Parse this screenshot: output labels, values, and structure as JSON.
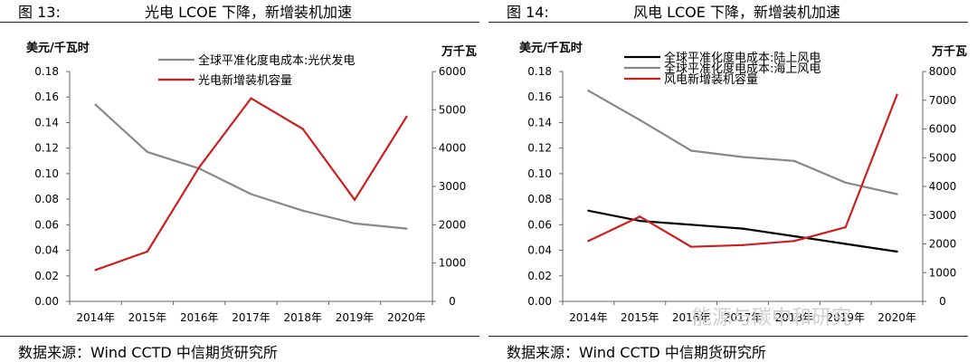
{
  "panels": [
    {
      "figure_number": "图 13:",
      "figure_title": "光电 LCOE 下降，新增装机加速",
      "source": "数据来源：Wind CCTD 中信期货研究所"
    },
    {
      "figure_number": "图 14:",
      "figure_title": "风电 LCOE 下降，新增装机加速",
      "source": "数据来源：Wind CCTD 中信期货研究所"
    }
  ],
  "watermark": "能源与碳中和研究",
  "chart_data": [
    {
      "type": "line",
      "categories": [
        "2014年",
        "2015年",
        "2016年",
        "2017年",
        "2018年",
        "2019年",
        "2020年"
      ],
      "y_left": {
        "label": "美元/千瓦时",
        "ylim": [
          0,
          0.18
        ],
        "ticks": [
          "0.00",
          "0.02",
          "0.04",
          "0.06",
          "0.08",
          "0.10",
          "0.12",
          "0.14",
          "0.16",
          "0.18"
        ]
      },
      "y_right": {
        "label": "万千瓦",
        "ylim": [
          0,
          6000
        ],
        "ticks": [
          "0",
          "1000",
          "2000",
          "3000",
          "4000",
          "5000",
          "6000"
        ]
      },
      "series": [
        {
          "name": "全球平准化度电成本:光伏发电",
          "axis": "left",
          "color": "#888888",
          "values": [
            0.154,
            0.117,
            0.104,
            0.084,
            0.071,
            0.061,
            0.057
          ]
        },
        {
          "name": "光电新增装机容量",
          "axis": "right",
          "color": "#cc1f1f",
          "values": [
            820,
            1300,
            3500,
            5300,
            4500,
            2650,
            4820
          ]
        }
      ],
      "legend_position": "top-center"
    },
    {
      "type": "line",
      "categories": [
        "2014年",
        "2015年",
        "2016年",
        "2017年",
        "2018年",
        "2019年",
        "2020年"
      ],
      "y_left": {
        "label": "美元/千瓦时",
        "ylim": [
          0,
          0.18
        ],
        "ticks": [
          "0.00",
          "0.02",
          "0.04",
          "0.06",
          "0.08",
          "0.10",
          "0.12",
          "0.14",
          "0.16",
          "0.18"
        ]
      },
      "y_right": {
        "label": "万千瓦",
        "ylim": [
          0,
          8000
        ],
        "ticks": [
          "0",
          "1000",
          "2000",
          "3000",
          "4000",
          "5000",
          "6000",
          "7000",
          "8000"
        ]
      },
      "series": [
        {
          "name": "全球平准化度电成本:陆上风电",
          "axis": "left",
          "color": "#000000",
          "values": [
            0.071,
            0.063,
            0.06,
            0.057,
            0.051,
            0.045,
            0.039
          ]
        },
        {
          "name": "全球平准化度电成本:海上风电",
          "axis": "left",
          "color": "#888888",
          "values": [
            0.165,
            0.142,
            0.118,
            0.113,
            0.11,
            0.093,
            0.084
          ]
        },
        {
          "name": "风电新增装机容量",
          "axis": "right",
          "color": "#cc1f1f",
          "values": [
            2100,
            2950,
            1900,
            1960,
            2100,
            2580,
            7190
          ]
        }
      ],
      "legend_position": "top-center"
    }
  ]
}
